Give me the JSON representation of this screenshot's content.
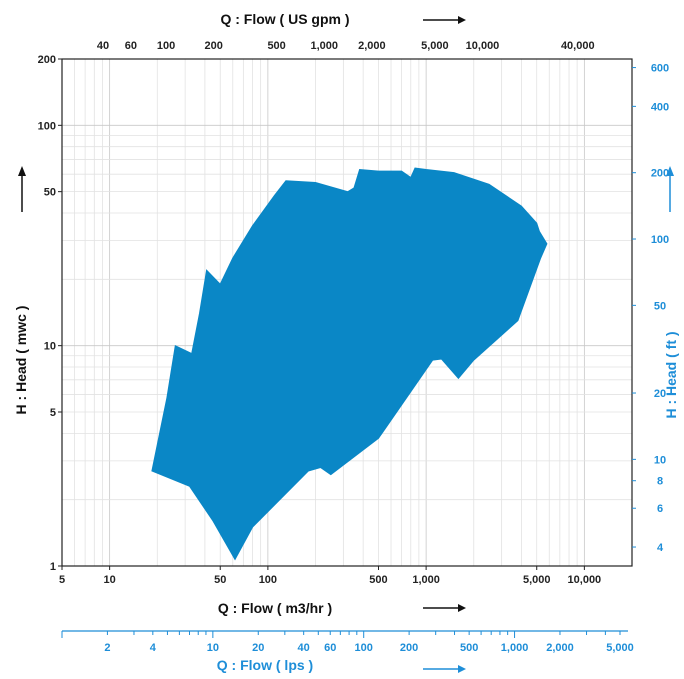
{
  "chart_data": {
    "type": "area",
    "x_bottom": {
      "label": "Q : Flow ( m3/hr )",
      "scale": "log",
      "range": [
        5,
        20000
      ],
      "ticks": [
        "5",
        "10",
        "50",
        "100",
        "500",
        "1,000",
        "5,000",
        "10,000"
      ]
    },
    "x_top": {
      "label": "Q : Flow ( US gpm )",
      "scale": "log",
      "ticks": [
        "40",
        "60",
        "100",
        "200",
        "500",
        "1,000",
        "2,000",
        "5,000",
        "10,000",
        "40,000"
      ]
    },
    "x_lps": {
      "label": "Q : Flow ( lps )",
      "scale": "log",
      "ticks": [
        "2",
        "4",
        "10",
        "20",
        "40",
        "60",
        "100",
        "200",
        "500",
        "1,000",
        "2,000",
        "5,000"
      ]
    },
    "y_left": {
      "label": "H : Head ( mwc )",
      "scale": "log",
      "range": [
        1,
        200
      ],
      "ticks": [
        "1",
        "5",
        "10",
        "50",
        "100",
        "200"
      ]
    },
    "y_right": {
      "label": "H : Head ( ft )",
      "scale": "log",
      "ticks": [
        "4",
        "6",
        "8",
        "10",
        "20",
        "50",
        "100",
        "200",
        "400",
        "600"
      ]
    },
    "grid": true,
    "series": [
      {
        "color": "#0a87c6",
        "points": [
          {
            "x": 18.5,
            "y": 2.7
          },
          {
            "x": 23,
            "y": 5.8
          },
          {
            "x": 26,
            "y": 10
          },
          {
            "x": 33,
            "y": 9.2
          },
          {
            "x": 37,
            "y": 14
          },
          {
            "x": 41,
            "y": 22
          },
          {
            "x": 50,
            "y": 19
          },
          {
            "x": 60,
            "y": 25
          },
          {
            "x": 80,
            "y": 35
          },
          {
            "x": 110,
            "y": 48
          },
          {
            "x": 130,
            "y": 56
          },
          {
            "x": 200,
            "y": 55
          },
          {
            "x": 320,
            "y": 50
          },
          {
            "x": 350,
            "y": 52
          },
          {
            "x": 380,
            "y": 63
          },
          {
            "x": 500,
            "y": 62
          },
          {
            "x": 700,
            "y": 62
          },
          {
            "x": 800,
            "y": 58
          },
          {
            "x": 850,
            "y": 64
          },
          {
            "x": 1000,
            "y": 63
          },
          {
            "x": 1500,
            "y": 61
          },
          {
            "x": 2500,
            "y": 54
          },
          {
            "x": 4000,
            "y": 43
          },
          {
            "x": 5000,
            "y": 36
          },
          {
            "x": 5200,
            "y": 33
          },
          {
            "x": 5800,
            "y": 29
          },
          {
            "x": 5300,
            "y": 25
          },
          {
            "x": 3800,
            "y": 13
          },
          {
            "x": 2000,
            "y": 8.6
          },
          {
            "x": 1600,
            "y": 7.1
          },
          {
            "x": 1250,
            "y": 8.7
          },
          {
            "x": 1100,
            "y": 8.6
          },
          {
            "x": 500,
            "y": 3.8
          },
          {
            "x": 250,
            "y": 2.6
          },
          {
            "x": 215,
            "y": 2.8
          },
          {
            "x": 180,
            "y": 2.7
          },
          {
            "x": 80,
            "y": 1.5
          },
          {
            "x": 62,
            "y": 1.07
          },
          {
            "x": 45,
            "y": 1.6
          },
          {
            "x": 32,
            "y": 2.3
          },
          {
            "x": 18.5,
            "y": 2.7
          }
        ]
      }
    ],
    "arrows": [
      "right",
      "right",
      "up",
      "up",
      "right"
    ]
  }
}
